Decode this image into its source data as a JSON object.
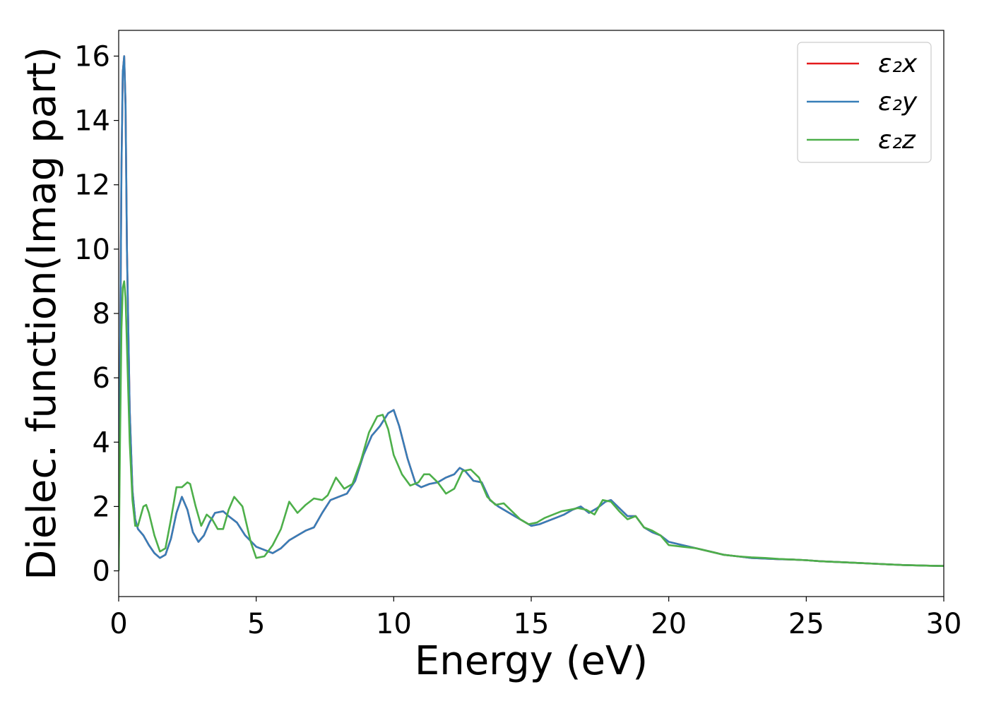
{
  "chart_data": {
    "type": "line",
    "title": "",
    "xlabel": "Energy (eV)",
    "ylabel": "Dielec. function(Imag part)",
    "xlim": [
      0,
      30
    ],
    "ylim": [
      -0.8,
      16.8
    ],
    "xticks": [
      0,
      5,
      10,
      15,
      20,
      25,
      30
    ],
    "yticks": [
      0,
      2,
      4,
      6,
      8,
      10,
      12,
      14,
      16
    ],
    "grid": false,
    "legend_position": "top-right",
    "series": [
      {
        "name": "ε₂x",
        "color": "#e41a1c",
        "x": [
          0,
          0.05,
          0.1,
          0.15,
          0.2,
          0.25,
          0.3,
          0.4,
          0.5,
          0.6,
          0.7,
          0.9,
          1.1,
          1.3,
          1.5,
          1.7,
          1.9,
          2.1,
          2.3,
          2.5,
          2.7,
          2.9,
          3.1,
          3.3,
          3.5,
          3.8,
          4.0,
          4.3,
          4.6,
          5.0,
          5.3,
          5.6,
          5.9,
          6.2,
          6.5,
          6.8,
          7.1,
          7.4,
          7.7,
          8.0,
          8.3,
          8.6,
          8.9,
          9.2,
          9.5,
          9.8,
          10.0,
          10.2,
          10.5,
          10.8,
          11.0,
          11.3,
          11.6,
          11.9,
          12.2,
          12.4,
          12.6,
          12.9,
          13.2,
          13.5,
          13.8,
          14.1,
          14.4,
          14.7,
          15.0,
          15.3,
          15.6,
          15.9,
          16.2,
          16.5,
          16.8,
          17.1,
          17.4,
          17.7,
          17.9,
          18.2,
          18.5,
          18.8,
          19.1,
          19.4,
          19.7,
          20.0,
          20.5,
          21.0,
          21.5,
          22.0,
          22.5,
          23.0,
          23.5,
          24.0,
          24.5,
          25.0,
          25.5,
          26.0,
          26.5,
          27.0,
          27.5,
          28.0,
          28.5,
          29.0,
          29.5,
          30.0
        ],
        "y": [
          0,
          6.0,
          12.5,
          15.5,
          16.0,
          14.5,
          10.0,
          5.0,
          2.5,
          1.6,
          1.3,
          1.1,
          0.8,
          0.55,
          0.4,
          0.5,
          1.0,
          1.8,
          2.3,
          1.9,
          1.2,
          0.9,
          1.1,
          1.5,
          1.8,
          1.85,
          1.7,
          1.5,
          1.1,
          0.75,
          0.65,
          0.55,
          0.7,
          0.95,
          1.1,
          1.25,
          1.35,
          1.8,
          2.2,
          2.3,
          2.4,
          2.8,
          3.6,
          4.2,
          4.5,
          4.9,
          5.0,
          4.5,
          3.5,
          2.7,
          2.6,
          2.7,
          2.75,
          2.9,
          3.0,
          3.2,
          3.1,
          2.8,
          2.75,
          2.2,
          2.0,
          1.85,
          1.7,
          1.55,
          1.4,
          1.45,
          1.55,
          1.65,
          1.75,
          1.9,
          2.0,
          1.8,
          1.95,
          2.15,
          2.2,
          1.95,
          1.7,
          1.7,
          1.35,
          1.2,
          1.1,
          0.9,
          0.8,
          0.7,
          0.6,
          0.5,
          0.45,
          0.4,
          0.38,
          0.36,
          0.35,
          0.33,
          0.3,
          0.28,
          0.26,
          0.24,
          0.22,
          0.2,
          0.18,
          0.17,
          0.16,
          0.15
        ]
      },
      {
        "name": "ε₂y",
        "color": "#377eb8",
        "x": [
          0,
          0.05,
          0.1,
          0.15,
          0.2,
          0.25,
          0.3,
          0.4,
          0.5,
          0.6,
          0.7,
          0.9,
          1.1,
          1.3,
          1.5,
          1.7,
          1.9,
          2.1,
          2.3,
          2.5,
          2.7,
          2.9,
          3.1,
          3.3,
          3.5,
          3.8,
          4.0,
          4.3,
          4.6,
          5.0,
          5.3,
          5.6,
          5.9,
          6.2,
          6.5,
          6.8,
          7.1,
          7.4,
          7.7,
          8.0,
          8.3,
          8.6,
          8.9,
          9.2,
          9.5,
          9.8,
          10.0,
          10.2,
          10.5,
          10.8,
          11.0,
          11.3,
          11.6,
          11.9,
          12.2,
          12.4,
          12.6,
          12.9,
          13.2,
          13.5,
          13.8,
          14.1,
          14.4,
          14.7,
          15.0,
          15.3,
          15.6,
          15.9,
          16.2,
          16.5,
          16.8,
          17.1,
          17.4,
          17.7,
          17.9,
          18.2,
          18.5,
          18.8,
          19.1,
          19.4,
          19.7,
          20.0,
          20.5,
          21.0,
          21.5,
          22.0,
          22.5,
          23.0,
          23.5,
          24.0,
          24.5,
          25.0,
          25.5,
          26.0,
          26.5,
          27.0,
          27.5,
          28.0,
          28.5,
          29.0,
          29.5,
          30.0
        ],
        "y": [
          0,
          6.0,
          12.5,
          15.5,
          16.0,
          14.5,
          10.0,
          5.0,
          2.5,
          1.6,
          1.3,
          1.1,
          0.8,
          0.55,
          0.4,
          0.5,
          1.0,
          1.8,
          2.3,
          1.9,
          1.2,
          0.9,
          1.1,
          1.5,
          1.8,
          1.85,
          1.7,
          1.5,
          1.1,
          0.75,
          0.65,
          0.55,
          0.7,
          0.95,
          1.1,
          1.25,
          1.35,
          1.8,
          2.2,
          2.3,
          2.4,
          2.8,
          3.6,
          4.2,
          4.5,
          4.9,
          5.0,
          4.5,
          3.5,
          2.7,
          2.6,
          2.7,
          2.75,
          2.9,
          3.0,
          3.2,
          3.1,
          2.8,
          2.75,
          2.2,
          2.0,
          1.85,
          1.7,
          1.55,
          1.4,
          1.45,
          1.55,
          1.65,
          1.75,
          1.9,
          2.0,
          1.8,
          1.95,
          2.15,
          2.2,
          1.95,
          1.7,
          1.7,
          1.35,
          1.2,
          1.1,
          0.9,
          0.8,
          0.7,
          0.6,
          0.5,
          0.45,
          0.4,
          0.38,
          0.36,
          0.35,
          0.33,
          0.3,
          0.28,
          0.26,
          0.24,
          0.22,
          0.2,
          0.18,
          0.17,
          0.16,
          0.15
        ]
      },
      {
        "name": "ε₂z",
        "color": "#4daf4a",
        "x": [
          0,
          0.05,
          0.1,
          0.15,
          0.2,
          0.25,
          0.3,
          0.4,
          0.5,
          0.6,
          0.7,
          0.8,
          0.9,
          1.0,
          1.1,
          1.3,
          1.5,
          1.7,
          1.9,
          2.1,
          2.3,
          2.5,
          2.6,
          2.8,
          3.0,
          3.2,
          3.4,
          3.6,
          3.8,
          4.0,
          4.2,
          4.5,
          4.8,
          5.0,
          5.3,
          5.6,
          5.9,
          6.2,
          6.5,
          6.8,
          7.1,
          7.4,
          7.6,
          7.9,
          8.2,
          8.5,
          8.8,
          9.1,
          9.4,
          9.6,
          9.8,
          10.0,
          10.3,
          10.6,
          10.9,
          11.1,
          11.3,
          11.6,
          11.9,
          12.2,
          12.5,
          12.8,
          13.1,
          13.4,
          13.7,
          14.0,
          14.3,
          14.6,
          14.9,
          15.2,
          15.5,
          15.8,
          16.1,
          16.4,
          16.7,
          17.0,
          17.3,
          17.6,
          17.9,
          18.2,
          18.5,
          18.8,
          19.1,
          19.4,
          19.7,
          20.0,
          20.5,
          21.0,
          21.5,
          22.0,
          22.5,
          23.0,
          23.5,
          24.0,
          24.5,
          25.0,
          25.5,
          26.0,
          26.5,
          27.0,
          27.5,
          28.0,
          28.5,
          29.0,
          29.5,
          30.0
        ],
        "y": [
          0,
          4.0,
          7.5,
          8.8,
          9.0,
          8.5,
          7.0,
          4.0,
          2.2,
          1.4,
          1.4,
          1.7,
          2.0,
          2.05,
          1.8,
          1.1,
          0.6,
          0.7,
          1.6,
          2.6,
          2.6,
          2.75,
          2.7,
          2.0,
          1.4,
          1.75,
          1.6,
          1.3,
          1.3,
          1.9,
          2.3,
          2.0,
          0.9,
          0.4,
          0.45,
          0.8,
          1.3,
          2.15,
          1.8,
          2.05,
          2.25,
          2.2,
          2.35,
          2.9,
          2.55,
          2.7,
          3.4,
          4.3,
          4.8,
          4.85,
          4.4,
          3.6,
          3.0,
          2.65,
          2.75,
          3.0,
          3.0,
          2.75,
          2.4,
          2.55,
          3.1,
          3.15,
          2.9,
          2.3,
          2.05,
          2.1,
          1.85,
          1.6,
          1.45,
          1.5,
          1.65,
          1.75,
          1.85,
          1.9,
          1.95,
          1.9,
          1.75,
          2.2,
          2.15,
          1.85,
          1.6,
          1.7,
          1.35,
          1.25,
          1.1,
          0.8,
          0.75,
          0.7,
          0.6,
          0.5,
          0.45,
          0.42,
          0.4,
          0.37,
          0.35,
          0.33,
          0.3,
          0.28,
          0.26,
          0.24,
          0.22,
          0.2,
          0.18,
          0.17,
          0.16,
          0.15
        ]
      }
    ]
  }
}
